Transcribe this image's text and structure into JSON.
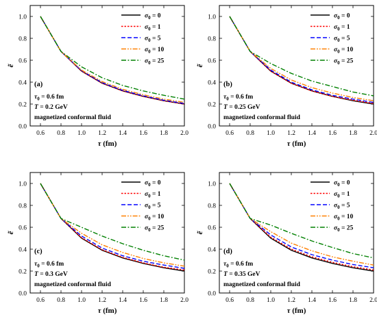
{
  "figure": {
    "panels": [
      {
        "panel_label": "(a)",
        "annotations": [
          "τ0 = 0.6 fm",
          "T = 0.2 GeV",
          "magnetized conformal fluid"
        ]
      },
      {
        "panel_label": "(b)",
        "annotations": [
          "τ0 = 0.6 fm",
          "T = 0.25 GeV",
          "magnetized conformal fluid"
        ]
      },
      {
        "panel_label": "(c)",
        "annotations": [
          "τ0 = 0.6 fm",
          "T = 0.3 GeV",
          "magnetized conformal fluid"
        ]
      },
      {
        "panel_label": "(d)",
        "annotations": [
          "τ0 = 0.6 fm",
          "T = 0.35 GeV",
          "magnetized conformal fluid"
        ]
      }
    ]
  },
  "chart_data": [
    {
      "type": "line",
      "panel": "(a)",
      "xlabel": "τ (fm)",
      "ylabel": "ẽ",
      "xlim": [
        0.5,
        2.0
      ],
      "ylim": [
        0.0,
        1.1
      ],
      "xticks": [
        "0.6",
        "0.8",
        "1.0",
        "1.2",
        "1.4",
        "1.6",
        "1.8",
        "2.0"
      ],
      "yticks": [
        "0.0",
        "0.2",
        "0.4",
        "0.6",
        "0.8",
        "1.0"
      ],
      "legend_position": "top-right",
      "x": [
        0.6,
        0.8,
        1.0,
        1.2,
        1.4,
        1.6,
        1.8,
        2.0
      ],
      "series": [
        {
          "name": "σ0 = 0",
          "color": "#000000",
          "dash": "solid",
          "values": [
            1.0,
            0.68,
            0.5,
            0.39,
            0.32,
            0.27,
            0.23,
            0.2
          ]
        },
        {
          "name": "σ0 = 1",
          "color": "#ff0000",
          "dash": "dot",
          "values": [
            1.0,
            0.68,
            0.5,
            0.39,
            0.32,
            0.27,
            0.23,
            0.2
          ]
        },
        {
          "name": "σ0 = 5",
          "color": "#0000ff",
          "dash": "dash",
          "values": [
            1.0,
            0.68,
            0.505,
            0.395,
            0.325,
            0.275,
            0.235,
            0.205
          ]
        },
        {
          "name": "σ0 = 10",
          "color": "#ff8000",
          "dash": "dashdotdot",
          "values": [
            1.0,
            0.68,
            0.51,
            0.405,
            0.335,
            0.285,
            0.245,
            0.215
          ]
        },
        {
          "name": "σ0 = 25",
          "color": "#008000",
          "dash": "dashdot",
          "values": [
            1.0,
            0.68,
            0.54,
            0.44,
            0.37,
            0.32,
            0.28,
            0.245
          ]
        }
      ]
    },
    {
      "type": "line",
      "panel": "(b)",
      "xlabel": "τ (fm)",
      "ylabel": "ẽ",
      "xlim": [
        0.5,
        2.0
      ],
      "ylim": [
        0.0,
        1.1
      ],
      "xticks": [
        "0.6",
        "0.8",
        "1.0",
        "1.2",
        "1.4",
        "1.6",
        "1.8",
        "2.0"
      ],
      "yticks": [
        "0.0",
        "0.2",
        "0.4",
        "0.6",
        "0.8",
        "1.0"
      ],
      "legend_position": "top-right",
      "x": [
        0.6,
        0.8,
        1.0,
        1.2,
        1.4,
        1.6,
        1.8,
        2.0
      ],
      "series": [
        {
          "name": "σ0 = 0",
          "color": "#000000",
          "dash": "solid",
          "values": [
            1.0,
            0.68,
            0.5,
            0.39,
            0.32,
            0.27,
            0.23,
            0.2
          ]
        },
        {
          "name": "σ0 = 1",
          "color": "#ff0000",
          "dash": "dot",
          "values": [
            1.0,
            0.68,
            0.5,
            0.39,
            0.32,
            0.27,
            0.235,
            0.205
          ]
        },
        {
          "name": "σ0 = 5",
          "color": "#0000ff",
          "dash": "dash",
          "values": [
            1.0,
            0.68,
            0.51,
            0.4,
            0.33,
            0.28,
            0.245,
            0.215
          ]
        },
        {
          "name": "σ0 = 10",
          "color": "#ff8000",
          "dash": "dashdotdot",
          "values": [
            1.0,
            0.68,
            0.525,
            0.42,
            0.35,
            0.3,
            0.26,
            0.23
          ]
        },
        {
          "name": "σ0 = 25",
          "color": "#008000",
          "dash": "dashdot",
          "values": [
            1.0,
            0.68,
            0.57,
            0.48,
            0.41,
            0.36,
            0.31,
            0.275
          ]
        }
      ]
    },
    {
      "type": "line",
      "panel": "(c)",
      "xlabel": "τ (fm)",
      "ylabel": "ẽ",
      "xlim": [
        0.5,
        2.0
      ],
      "ylim": [
        0.0,
        1.1
      ],
      "xticks": [
        "0.6",
        "0.8",
        "1.0",
        "1.2",
        "1.4",
        "1.6",
        "1.8",
        "2.0"
      ],
      "yticks": [
        "0.0",
        "0.2",
        "0.4",
        "0.6",
        "0.8",
        "1.0"
      ],
      "legend_position": "top-right",
      "x": [
        0.6,
        0.8,
        1.0,
        1.2,
        1.4,
        1.6,
        1.8,
        2.0
      ],
      "series": [
        {
          "name": "σ0 = 0",
          "color": "#000000",
          "dash": "solid",
          "values": [
            1.0,
            0.68,
            0.5,
            0.39,
            0.32,
            0.27,
            0.23,
            0.2
          ]
        },
        {
          "name": "σ0 = 1",
          "color": "#ff0000",
          "dash": "dot",
          "values": [
            1.0,
            0.68,
            0.505,
            0.395,
            0.325,
            0.275,
            0.235,
            0.21
          ]
        },
        {
          "name": "σ0 = 5",
          "color": "#0000ff",
          "dash": "dash",
          "values": [
            1.0,
            0.68,
            0.52,
            0.41,
            0.34,
            0.29,
            0.255,
            0.225
          ]
        },
        {
          "name": "σ0 = 10",
          "color": "#ff8000",
          "dash": "dashdotdot",
          "values": [
            1.0,
            0.68,
            0.545,
            0.44,
            0.37,
            0.315,
            0.275,
            0.245
          ]
        },
        {
          "name": "σ0 = 25",
          "color": "#008000",
          "dash": "dashdot",
          "values": [
            1.0,
            0.68,
            0.6,
            0.52,
            0.45,
            0.39,
            0.34,
            0.3
          ]
        }
      ]
    },
    {
      "type": "line",
      "panel": "(d)",
      "xlabel": "τ (fm)",
      "ylabel": "ẽ",
      "xlim": [
        0.5,
        2.0
      ],
      "ylim": [
        0.0,
        1.1
      ],
      "xticks": [
        "0.6",
        "0.8",
        "1.0",
        "1.2",
        "1.4",
        "1.6",
        "1.8",
        "2.0"
      ],
      "yticks": [
        "0.0",
        "0.2",
        "0.4",
        "0.6",
        "0.8",
        "1.0"
      ],
      "legend_position": "top-right",
      "x": [
        0.6,
        0.8,
        1.0,
        1.2,
        1.4,
        1.6,
        1.8,
        2.0
      ],
      "series": [
        {
          "name": "σ0 = 0",
          "color": "#000000",
          "dash": "solid",
          "values": [
            1.0,
            0.68,
            0.5,
            0.39,
            0.32,
            0.27,
            0.23,
            0.2
          ]
        },
        {
          "name": "σ0 = 1",
          "color": "#ff0000",
          "dash": "dot",
          "values": [
            1.0,
            0.68,
            0.51,
            0.4,
            0.33,
            0.28,
            0.24,
            0.21
          ]
        },
        {
          "name": "σ0 = 5",
          "color": "#0000ff",
          "dash": "dash",
          "values": [
            1.0,
            0.68,
            0.53,
            0.42,
            0.35,
            0.3,
            0.26,
            0.23
          ]
        },
        {
          "name": "σ0 = 10",
          "color": "#ff8000",
          "dash": "dashdotdot",
          "values": [
            1.0,
            0.68,
            0.56,
            0.455,
            0.385,
            0.33,
            0.29,
            0.255
          ]
        },
        {
          "name": "σ0 = 25",
          "color": "#008000",
          "dash": "dashdot",
          "values": [
            1.0,
            0.68,
            0.62,
            0.545,
            0.475,
            0.415,
            0.36,
            0.32
          ]
        }
      ]
    }
  ]
}
